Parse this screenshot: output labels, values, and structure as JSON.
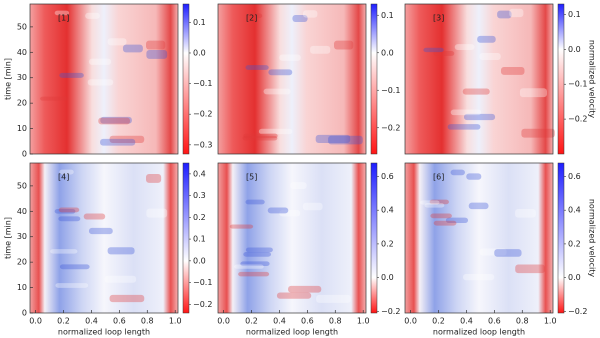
{
  "chart_data": [
    {
      "type": "heatmap",
      "label": "[1]",
      "ylabel": "time [min]",
      "ylim": [
        0,
        59
      ],
      "yticks": [
        0,
        10,
        20,
        30,
        40,
        50
      ],
      "xlim": [
        -0.04,
        1.02
      ],
      "colorbar": {
        "lim": [
          -0.33,
          0.16
        ],
        "ticks": [
          0.1,
          {
            "value": 0,
            "label": "0.0"
          },
          {
            "value": -0.1,
            "label": "−0.1"
          },
          {
            "value": -0.2,
            "label": "−0.2"
          },
          {
            "value": -0.3,
            "label": "−0.3"
          }
        ]
      }
    },
    {
      "type": "heatmap",
      "label": "[2]",
      "ylim": [
        0,
        59
      ],
      "xlim": [
        -0.04,
        1.02
      ],
      "colorbar": {
        "lim": [
          -0.27,
          0.13
        ],
        "ticks": [
          0.1,
          {
            "value": 0,
            "label": "0.0"
          },
          {
            "value": -0.1,
            "label": "−0.1"
          },
          {
            "value": -0.2,
            "label": "−0.2"
          }
        ]
      }
    },
    {
      "type": "heatmap",
      "label": "[3]",
      "ylim": [
        0,
        59
      ],
      "xlim": [
        -0.04,
        1.02
      ],
      "colorbar": {
        "lim": [
          -0.3,
          0.13
        ],
        "label": "normalized velocity",
        "ticks": [
          0.1,
          {
            "value": 0,
            "label": "0.0"
          },
          {
            "value": -0.1,
            "label": "−0.1"
          },
          {
            "value": -0.2,
            "label": "−0.2"
          }
        ]
      }
    },
    {
      "type": "heatmap",
      "label": "[4]",
      "ylabel": "time [min]",
      "xlabel": "normalized loop length",
      "ylim": [
        0,
        59
      ],
      "yticks": [
        0,
        10,
        20,
        30,
        40,
        50
      ],
      "xlim": [
        -0.04,
        1.02
      ],
      "xticks": [
        {
          "value": 0,
          "label": "0.0"
        },
        0.2,
        0.4,
        0.6,
        0.8,
        {
          "value": 1,
          "label": "1.0"
        }
      ],
      "colorbar": {
        "lim": [
          -0.24,
          0.45
        ],
        "ticks": [
          0.4,
          0.3,
          0.2,
          0.1,
          {
            "value": 0,
            "label": "0.0"
          },
          {
            "value": -0.1,
            "label": "−0.1"
          },
          {
            "value": -0.2,
            "label": "−0.2"
          }
        ]
      }
    },
    {
      "type": "heatmap",
      "label": "[5]",
      "xlabel": "normalized loop length",
      "ylim": [
        0,
        59
      ],
      "xlim": [
        -0.04,
        1.02
      ],
      "xticks": [
        {
          "value": 0,
          "label": "0.0"
        },
        0.2,
        0.4,
        0.6,
        0.8,
        {
          "value": 1,
          "label": "1.0"
        }
      ],
      "colorbar": {
        "lim": [
          -0.21,
          0.68
        ],
        "ticks": [
          0.6,
          0.4,
          0.2,
          {
            "value": 0,
            "label": "0.0"
          },
          {
            "value": -0.2,
            "label": "−0.2"
          }
        ]
      }
    },
    {
      "type": "heatmap",
      "label": "[6]",
      "xlabel": "normalized loop length",
      "ylim": [
        0,
        59
      ],
      "xlim": [
        -0.04,
        1.02
      ],
      "xticks": [
        {
          "value": 0,
          "label": "0.0"
        },
        0.2,
        0.4,
        0.6,
        0.8,
        {
          "value": 1,
          "label": "1.0"
        }
      ],
      "colorbar": {
        "lim": [
          -0.21,
          0.68
        ],
        "label": "normalized velocity",
        "ticks": [
          0.6,
          0.4,
          0.2,
          {
            "value": 0,
            "label": "0.0"
          },
          {
            "value": -0.2,
            "label": "−0.2"
          }
        ]
      }
    }
  ]
}
